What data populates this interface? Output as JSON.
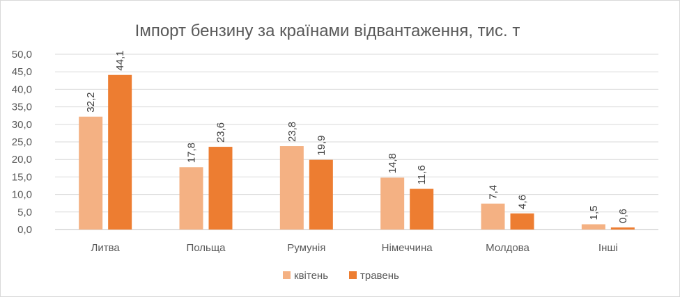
{
  "chart_data": {
    "type": "bar",
    "title": "Імпорт бензину за країнами відвантаження, тис. т",
    "categories": [
      "Литва",
      "Польща",
      "Румунія",
      "Німеччина",
      "Молдова",
      "Інші"
    ],
    "series": [
      {
        "name": "квітень",
        "color": "#F4B183",
        "values": [
          32.2,
          17.8,
          23.8,
          14.8,
          7.4,
          1.5
        ],
        "labels": [
          "32,2",
          "17,8",
          "23,8",
          "14,8",
          "7,4",
          "1,5"
        ]
      },
      {
        "name": "травень",
        "color": "#ED7D31",
        "values": [
          44.1,
          23.6,
          19.9,
          11.6,
          4.6,
          0.6
        ],
        "labels": [
          "44,1",
          "23,6",
          "19,9",
          "11,6",
          "4,6",
          "0,6"
        ]
      }
    ],
    "ylim": [
      0,
      50
    ],
    "yticks": [
      0,
      5,
      10,
      15,
      20,
      25,
      30,
      35,
      40,
      45,
      50
    ],
    "ytick_labels": [
      "0,0",
      "5,0",
      "10,0",
      "15,0",
      "20,0",
      "25,0",
      "30,0",
      "35,0",
      "40,0",
      "45,0",
      "50,0"
    ],
    "grid": true,
    "legend_position": "bottom"
  }
}
